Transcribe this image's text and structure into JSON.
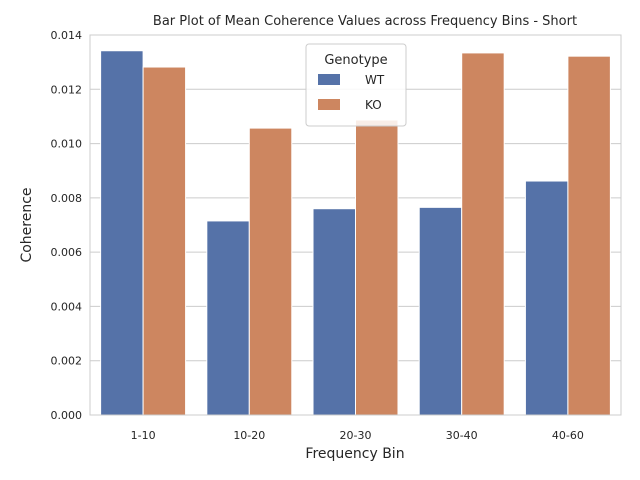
{
  "chart_data": {
    "type": "bar",
    "title": "Bar Plot of Mean Coherence Values across Frequency Bins - Short",
    "xlabel": "Frequency Bin",
    "ylabel": "Coherence",
    "categories": [
      "1-10",
      "10-20",
      "20-30",
      "30-40",
      "40-60"
    ],
    "series": [
      {
        "name": "WT",
        "color": "#5572a8",
        "values": [
          0.01342,
          0.00715,
          0.0076,
          0.00765,
          0.00862
        ]
      },
      {
        "name": "KO",
        "color": "#cd8660",
        "values": [
          0.01282,
          0.01057,
          0.01087,
          0.01334,
          0.01322
        ]
      }
    ],
    "ylim": [
      0,
      0.014
    ],
    "yticks": [
      "0.000",
      "0.002",
      "0.004",
      "0.006",
      "0.008",
      "0.010",
      "0.012",
      "0.014"
    ],
    "grid": "horizontal",
    "legend": {
      "title": "Genotype",
      "placement": "top-center"
    }
  }
}
